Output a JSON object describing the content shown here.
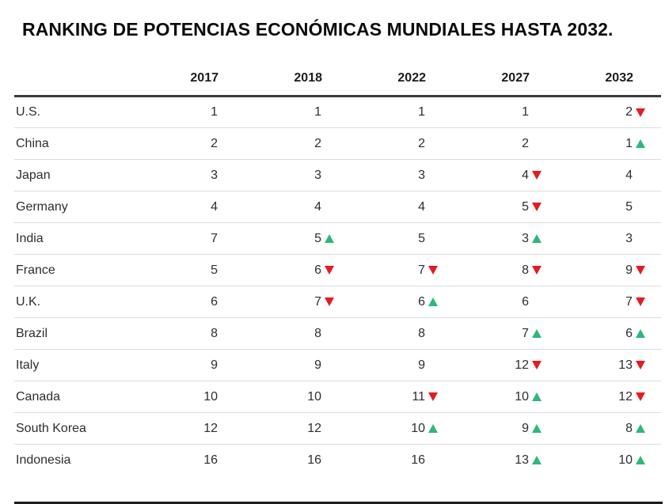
{
  "colors": {
    "up": "#2eb77a",
    "down": "#e8191f"
  },
  "chart_data": {
    "type": "table",
    "title": "RANKING DE POTENCIAS ECONÓMICAS MUNDIALES HASTA 2032.",
    "columns": [
      "2017",
      "2018",
      "2022",
      "2027",
      "2032"
    ],
    "rows": [
      {
        "country": "U.S.",
        "cells": [
          {
            "v": "1"
          },
          {
            "v": "1"
          },
          {
            "v": "1"
          },
          {
            "v": "1"
          },
          {
            "v": "2",
            "trend": "down"
          }
        ]
      },
      {
        "country": "China",
        "cells": [
          {
            "v": "2"
          },
          {
            "v": "2"
          },
          {
            "v": "2"
          },
          {
            "v": "2"
          },
          {
            "v": "1",
            "trend": "up"
          }
        ]
      },
      {
        "country": "Japan",
        "cells": [
          {
            "v": "3"
          },
          {
            "v": "3"
          },
          {
            "v": "3"
          },
          {
            "v": "4",
            "trend": "down"
          },
          {
            "v": "4"
          }
        ]
      },
      {
        "country": "Germany",
        "cells": [
          {
            "v": "4"
          },
          {
            "v": "4"
          },
          {
            "v": "4"
          },
          {
            "v": "5",
            "trend": "down"
          },
          {
            "v": "5"
          }
        ]
      },
      {
        "country": "India",
        "cells": [
          {
            "v": "7"
          },
          {
            "v": "5",
            "trend": "up"
          },
          {
            "v": "5"
          },
          {
            "v": "3",
            "trend": "up"
          },
          {
            "v": "3"
          }
        ]
      },
      {
        "country": "France",
        "cells": [
          {
            "v": "5"
          },
          {
            "v": "6",
            "trend": "down"
          },
          {
            "v": "7",
            "trend": "down"
          },
          {
            "v": "8",
            "trend": "down"
          },
          {
            "v": "9",
            "trend": "down"
          }
        ]
      },
      {
        "country": "U.K.",
        "cells": [
          {
            "v": "6"
          },
          {
            "v": "7",
            "trend": "down"
          },
          {
            "v": "6",
            "trend": "up"
          },
          {
            "v": "6"
          },
          {
            "v": "7",
            "trend": "down"
          }
        ]
      },
      {
        "country": "Brazil",
        "cells": [
          {
            "v": "8"
          },
          {
            "v": "8"
          },
          {
            "v": "8"
          },
          {
            "v": "7",
            "trend": "up"
          },
          {
            "v": "6",
            "trend": "up"
          }
        ]
      },
      {
        "country": "Italy",
        "cells": [
          {
            "v": "9"
          },
          {
            "v": "9"
          },
          {
            "v": "9"
          },
          {
            "v": "12",
            "trend": "down"
          },
          {
            "v": "13",
            "trend": "down"
          }
        ]
      },
      {
        "country": "Canada",
        "cells": [
          {
            "v": "10"
          },
          {
            "v": "10"
          },
          {
            "v": "11",
            "trend": "down"
          },
          {
            "v": "10",
            "trend": "up"
          },
          {
            "v": "12",
            "trend": "down"
          }
        ]
      },
      {
        "country": "South Korea",
        "cells": [
          {
            "v": "12"
          },
          {
            "v": "12"
          },
          {
            "v": "10",
            "trend": "up"
          },
          {
            "v": "9",
            "trend": "up"
          },
          {
            "v": "8",
            "trend": "up"
          }
        ]
      },
      {
        "country": "Indonesia",
        "cells": [
          {
            "v": "16"
          },
          {
            "v": "16"
          },
          {
            "v": "16"
          },
          {
            "v": "13",
            "trend": "up"
          },
          {
            "v": "10",
            "trend": "up"
          }
        ]
      }
    ]
  }
}
